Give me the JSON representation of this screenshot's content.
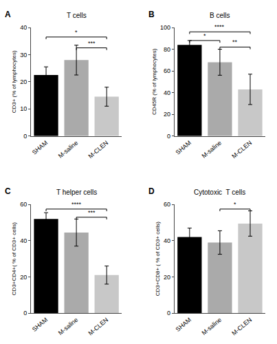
{
  "chart_data": [
    {
      "type": "bar",
      "label": "A",
      "title": "T cells",
      "ylabel": "CD3+ (% of lymphocytes)",
      "categories": [
        "SHAM",
        "M-saline",
        "M-CLEN"
      ],
      "values": [
        22.5,
        28.0,
        14.5
      ],
      "errors": [
        3.0,
        5.5,
        3.5
      ],
      "colors": [
        "#000000",
        "#aaaaaa",
        "#c8c8c8"
      ],
      "ylim": [
        0,
        40
      ],
      "yticks": [
        0,
        10,
        20,
        30,
        40
      ],
      "grid": false,
      "significance": [
        {
          "from": "SHAM",
          "to": "M-CLEN",
          "y": 36.5,
          "text": "*"
        },
        {
          "from": "M-saline",
          "to": "M-CLEN",
          "y": 32.5,
          "text": "***"
        }
      ]
    },
    {
      "type": "bar",
      "label": "B",
      "title": "B cells",
      "ylabel": "CD45R (% of lymphocytes)",
      "categories": [
        "SHAM",
        "M-saline",
        "M-CLEN"
      ],
      "values": [
        84.0,
        68.0,
        43.0
      ],
      "errors": [
        4.0,
        12.0,
        14.0
      ],
      "colors": [
        "#000000",
        "#aaaaaa",
        "#c8c8c8"
      ],
      "ylim": [
        0,
        100
      ],
      "yticks": [
        0,
        20,
        40,
        60,
        80,
        100
      ],
      "grid": false,
      "significance": [
        {
          "from": "SHAM",
          "to": "M-CLEN",
          "y": 96,
          "text": "****"
        },
        {
          "from": "SHAM",
          "to": "M-saline",
          "y": 88,
          "text": "*"
        },
        {
          "from": "M-saline",
          "to": "M-CLEN",
          "y": 82,
          "text": "**"
        }
      ]
    },
    {
      "type": "bar",
      "label": "C",
      "title": "T helper cells",
      "ylabel": "CD3+CD4+( % of CD3+ cells)",
      "categories": [
        "SHAM",
        "M-saline",
        "M-CLEN"
      ],
      "values": [
        52.0,
        44.5,
        21.0
      ],
      "errors": [
        3.5,
        7.5,
        5.0
      ],
      "colors": [
        "#000000",
        "#aaaaaa",
        "#c8c8c8"
      ],
      "ylim": [
        0,
        60
      ],
      "yticks": [
        0,
        20,
        40,
        60
      ],
      "grid": false,
      "significance": [
        {
          "from": "SHAM",
          "to": "M-CLEN",
          "y": 57.5,
          "text": "****"
        },
        {
          "from": "M-saline",
          "to": "M-CLEN",
          "y": 53.0,
          "text": "***"
        }
      ]
    },
    {
      "type": "bar",
      "label": "D",
      "title": "Cytotoxic  T cells",
      "ylabel": "CD3+CD8+ ( % of CD3+ cells)",
      "categories": [
        "SHAM",
        "M-saline",
        "M-CLEN"
      ],
      "values": [
        42.0,
        39.0,
        49.5
      ],
      "errors": [
        5.0,
        6.5,
        7.0
      ],
      "colors": [
        "#000000",
        "#aaaaaa",
        "#c8c8c8"
      ],
      "ylim": [
        0,
        60
      ],
      "yticks": [
        0,
        20,
        40,
        60
      ],
      "grid": false,
      "significance": [
        {
          "from": "M-saline",
          "to": "M-CLEN",
          "y": 57.5,
          "text": "*"
        }
      ]
    }
  ]
}
